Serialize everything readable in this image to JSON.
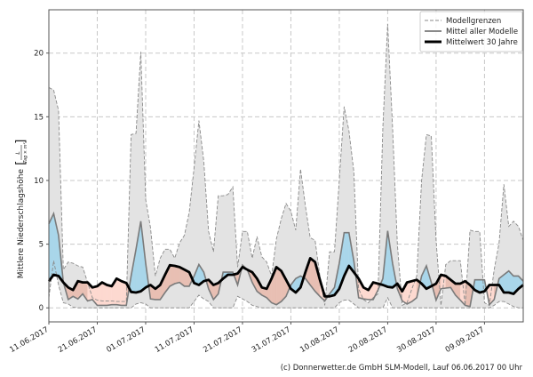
{
  "chart_data": {
    "type": "area",
    "title": "",
    "xlabel": "",
    "ylabel": "Mittlere Niederschlagshöhe",
    "ylabel_unit_num": "L",
    "ylabel_unit_den": "Tag × m²",
    "ylim": [
      -1.1,
      23.4
    ],
    "yticks": [
      0,
      5,
      10,
      15,
      20
    ],
    "x_start": "11.06.2017",
    "xtick_labels": [
      "11.06.2017",
      "21.06.2017",
      "01.07.2017",
      "11.07.2017",
      "21.07.2017",
      "31.07.2017",
      "10.08.2017",
      "20.08.2017",
      "30.08.2017",
      "09.09.2017"
    ],
    "grid": true,
    "legend_position": "top-right",
    "legend": [
      {
        "label": "Modellgrenzen",
        "style": "dashed"
      },
      {
        "label": "Mittel aller Modelle",
        "style": "solid-gray"
      },
      {
        "label": "Mittelwert 30 Jahre",
        "style": "solid-black-thick"
      }
    ],
    "colors": {
      "range_fill": "#e3e3e3",
      "range_line": "#8a8a8a",
      "mean_line": "#7a7a7a",
      "climate_line": "#000000",
      "above_fill": "#a9d6ea",
      "below_fill": "#e8bfb3",
      "all_below_fill": "#fdd9d0",
      "grid": "#c8c8c8"
    },
    "series": [
      {
        "name": "Modellgrenzen (oben)",
        "values": [
          17.3,
          17.1,
          15.5,
          3.0,
          3.6,
          3.5,
          3.3,
          3.2,
          2.0,
          0.8,
          0.6,
          0.55,
          0.55,
          0.55,
          0.5,
          0.5,
          0.5,
          13.6,
          13.7,
          20.1,
          8.5,
          6.3,
          2.5,
          3.9,
          4.6,
          4.6,
          3.9,
          5.1,
          5.7,
          7.5,
          11.0,
          14.7,
          11.5,
          6.0,
          4.4,
          8.8,
          8.8,
          8.9,
          9.5,
          3.2,
          6.0,
          6.0,
          3.9,
          5.6,
          4.0,
          3.6,
          2.5,
          5.4,
          7.0,
          8.2,
          7.6,
          6.1,
          10.9,
          8.0,
          5.5,
          5.3,
          2.5,
          0.2,
          4.4,
          4.4,
          10.0,
          15.8,
          13.9,
          10.7,
          1.5,
          0.65,
          0.4,
          0.8,
          1.1,
          14.2,
          22.3,
          14.2,
          5.0,
          0.2,
          0.4,
          1.5,
          2.5,
          10.0,
          13.6,
          13.5,
          5.3,
          0.2,
          3.4,
          3.7,
          3.7,
          3.7,
          0.2,
          6.1,
          6.0,
          6.0,
          0.4,
          0.2,
          3.0,
          5.1,
          9.7,
          6.4,
          6.8,
          6.4,
          5.3
        ]
      },
      {
        "name": "Modellgrenzen (unten)",
        "values": [
          0.8,
          3.7,
          1.8,
          0.4,
          0.3,
          0.05,
          0,
          0,
          0,
          0,
          0,
          0,
          0,
          0,
          0,
          0,
          0,
          0,
          0.3,
          0.4,
          0.3,
          0,
          0,
          0,
          0,
          0,
          0,
          0,
          0,
          0,
          0.5,
          1.0,
          0.7,
          0.5,
          0,
          0,
          0,
          0,
          0,
          0.9,
          0.7,
          0.5,
          0.2,
          0.1,
          0,
          0,
          0,
          0,
          0,
          0,
          0,
          0,
          0,
          0,
          0,
          0,
          0,
          0,
          0,
          0,
          0.4,
          0.6,
          0.6,
          0.3,
          0,
          0,
          0,
          0,
          0,
          0,
          0.8,
          0,
          0,
          0,
          0,
          0,
          0,
          0,
          0,
          0,
          0,
          0,
          0,
          0,
          0,
          0,
          0,
          0,
          0,
          0,
          0,
          0,
          0.2,
          0.5,
          0.5,
          0.3,
          0.1,
          0,
          0
        ]
      },
      {
        "name": "Mittel aller Modelle",
        "values": [
          6.6,
          7.4,
          5.7,
          2.0,
          0.65,
          0.9,
          0.7,
          1.1,
          0.55,
          0.65,
          0.2,
          0.2,
          0.2,
          0.25,
          0.25,
          0.2,
          0.2,
          2.5,
          4.6,
          6.8,
          3.5,
          0.7,
          0.65,
          0.65,
          1.2,
          1.7,
          1.9,
          2.0,
          1.7,
          1.7,
          2.5,
          3.4,
          2.8,
          1.5,
          0.65,
          1.1,
          2.8,
          2.8,
          2.8,
          1.8,
          3.35,
          3.0,
          2.0,
          1.3,
          1.0,
          0.8,
          0.4,
          0.25,
          0.5,
          0.9,
          1.8,
          2.3,
          2.5,
          2.3,
          1.8,
          1.3,
          0.9,
          0.55,
          1.1,
          1.6,
          3.5,
          5.9,
          5.9,
          3.7,
          0.8,
          0.7,
          0.65,
          0.65,
          1.4,
          2.3,
          6.05,
          3.5,
          1.5,
          0.55,
          0.3,
          0.5,
          0.8,
          2.5,
          3.3,
          2.0,
          0.6,
          1.5,
          1.55,
          1.6,
          1.0,
          0.6,
          0.2,
          0.1,
          2.2,
          2.2,
          2.2,
          0.25,
          0.65,
          2.3,
          2.6,
          2.9,
          2.5,
          2.5,
          2.1
        ]
      },
      {
        "name": "Mittelwert 30 Jahre",
        "values": [
          2.1,
          2.6,
          2.5,
          2.0,
          1.6,
          1.4,
          2.1,
          2.0,
          2.0,
          1.6,
          1.7,
          2.0,
          1.8,
          1.7,
          2.3,
          2.1,
          1.95,
          1.25,
          1.2,
          1.3,
          1.6,
          1.8,
          1.5,
          1.8,
          2.6,
          3.35,
          3.3,
          3.2,
          3.0,
          2.8,
          1.95,
          1.8,
          2.1,
          2.2,
          1.8,
          1.95,
          2.3,
          2.6,
          2.6,
          2.7,
          3.2,
          3.0,
          2.8,
          2.3,
          1.6,
          1.5,
          2.3,
          3.2,
          2.9,
          2.2,
          1.5,
          1.2,
          1.6,
          2.8,
          3.9,
          3.6,
          2.2,
          0.9,
          0.9,
          1.0,
          1.5,
          2.5,
          3.3,
          2.8,
          2.3,
          1.6,
          1.4,
          2.0,
          1.9,
          1.8,
          1.65,
          1.6,
          1.9,
          1.3,
          2.0,
          2.1,
          2.2,
          1.9,
          1.5,
          1.7,
          1.9,
          2.6,
          2.5,
          2.2,
          1.9,
          1.9,
          2.1,
          1.8,
          1.4,
          1.2,
          1.3,
          1.8,
          1.8,
          1.8,
          1.2,
          1.2,
          1.1,
          1.5,
          1.8
        ]
      }
    ]
  },
  "footer": "(c) Donnerwetter.de GmbH SLM-Modell, Lauf 06.06.2017 00 Uhr"
}
